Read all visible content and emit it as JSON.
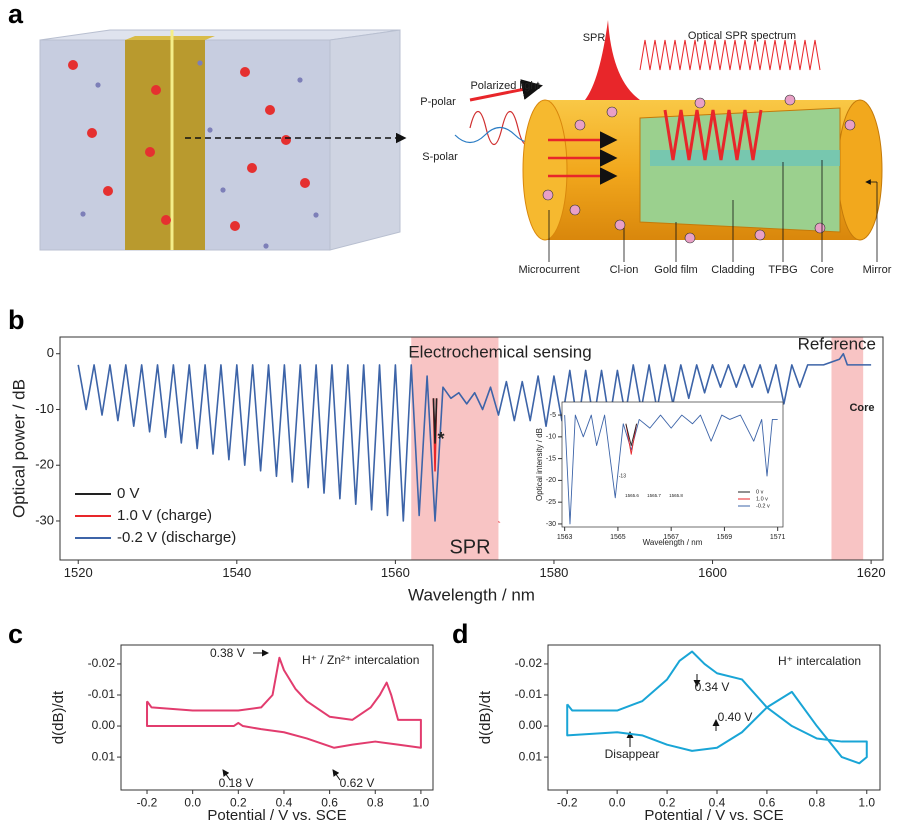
{
  "panel_labels": [
    "a",
    "b",
    "c",
    "d"
  ],
  "diagram": {
    "labels": [
      "Optical SPR spectrum",
      "SPR",
      "Polarized light",
      "P-polar",
      "S-polar",
      "Microcurrent",
      "Cl-ion",
      "Gold film",
      "Cladding",
      "TFBG",
      "Core",
      "Mirror"
    ]
  },
  "chart_data": [
    {
      "type": "line",
      "xlabel": "Wavelength / nm",
      "ylabel": "Optical power / dB",
      "xlim": [
        1517.7,
        1621.5
      ],
      "ylim": [
        -37,
        3
      ],
      "xticks": [
        1520,
        1540,
        1560,
        1580,
        1600,
        1620
      ],
      "yticks": [
        0,
        -10,
        -20,
        -30
      ],
      "legend": "lower left",
      "regions": [
        {
          "xlim": [
            1562,
            1573
          ],
          "label": "Electrochemical sensing"
        },
        {
          "xlim": [
            1615,
            1619
          ],
          "label": "Reference"
        }
      ],
      "region_color": "#f8c4c4",
      "annotations": [
        "SPR",
        "*",
        "Core"
      ],
      "annotation_color": "#e8262a",
      "series": [
        {
          "name": "0 V",
          "color": "#222222",
          "x": [
            1564.8,
            1565,
            1565.2
          ],
          "values": [
            -8,
            -16,
            -8
          ]
        },
        {
          "name": "1.0 V (charge)",
          "color": "#e8262a",
          "x": [
            1564.8,
            1565,
            1565.2
          ],
          "values": [
            -8,
            -21,
            -8
          ]
        },
        {
          "name": "-0.2 V (discharge)",
          "color": "#3d64a8",
          "x": [
            1520,
            1521,
            1522,
            1523,
            1524,
            1525,
            1526,
            1527,
            1528,
            1529,
            1530,
            1531,
            1532,
            1533,
            1534,
            1535,
            1536,
            1537,
            1538,
            1539,
            1540,
            1541,
            1542,
            1543,
            1544,
            1545,
            1546,
            1547,
            1548,
            1549,
            1550,
            1551,
            1552,
            1553,
            1554,
            1555,
            1556,
            1557,
            1558,
            1559,
            1560,
            1561,
            1562,
            1563,
            1564,
            1565,
            1566,
            1567,
            1568,
            1569,
            1570,
            1571,
            1572,
            1573,
            1574,
            1575,
            1576,
            1577,
            1578,
            1579,
            1580,
            1581,
            1582,
            1583,
            1584,
            1585,
            1586,
            1587,
            1588,
            1589,
            1590,
            1591,
            1592,
            1593,
            1594,
            1595,
            1596,
            1597,
            1598,
            1599,
            1600,
            1601,
            1602,
            1603,
            1604,
            1605,
            1606,
            1607,
            1608,
            1609,
            1610,
            1611,
            1612,
            1614,
            1616,
            1616.5,
            1617,
            1620
          ],
          "values": [
            -2,
            -10,
            -2,
            -11,
            -2,
            -12,
            -2,
            -13,
            -2,
            -14,
            -2,
            -15,
            -2,
            -16,
            -2,
            -17,
            -2,
            -18,
            -2,
            -19,
            -2,
            -20,
            -2,
            -21,
            -2,
            -22,
            -2,
            -23,
            -2,
            -24,
            -2,
            -25,
            -2,
            -26,
            -2,
            -27,
            -2,
            -28,
            -2,
            -29,
            -2,
            -30,
            -2,
            -29,
            -4,
            -30,
            -6,
            -8,
            -7,
            -9,
            -7,
            -10,
            -6,
            -11,
            -5,
            -12,
            -5,
            -12,
            -4,
            -13,
            -4,
            -12,
            -3,
            -13,
            -3,
            -12,
            -3,
            -12,
            -3,
            -11,
            -2,
            -10,
            -2,
            -10,
            -2,
            -9,
            -2,
            -8,
            -2,
            -7,
            -2,
            -6,
            -2,
            -6,
            -2,
            -6,
            -2,
            -7,
            -2,
            -9,
            -2,
            -6,
            -2,
            -2,
            -1,
            0,
            -2,
            -2
          ]
        }
      ]
    },
    {
      "type": "line",
      "xlabel": "Wavelength / nm",
      "ylabel": "Optical intensity / dB",
      "xlim": [
        1562.9,
        1571.2
      ],
      "ylim": [
        -30.7,
        -2
      ],
      "xticks": [
        1563,
        1565,
        1567,
        1569,
        1571
      ],
      "yticks": [
        -5,
        -10,
        -15,
        -20,
        -25,
        -30
      ],
      "legend": "lower right",
      "annotations": [
        "-13",
        "1565.6",
        "1565.7",
        "1565.8"
      ],
      "annotation_color": "#222222",
      "series": [
        {
          "name": "0 v",
          "color": "#222222",
          "x": [
            1565.3,
            1565.5,
            1565.7
          ],
          "values": [
            -7,
            -12,
            -7
          ]
        },
        {
          "name": "1.0 v",
          "color": "#e8262a",
          "x": [
            1565.3,
            1565.5,
            1565.7
          ],
          "values": [
            -7,
            -14,
            -7
          ]
        },
        {
          "name": "-0.2 v",
          "color": "#3d64a8",
          "x": [
            1563,
            1563.2,
            1563.4,
            1563.7,
            1564.0,
            1564.2,
            1564.5,
            1564.9,
            1565.2,
            1565.5,
            1565.8,
            1566.2,
            1566.6,
            1567.0,
            1567.4,
            1567.8,
            1568.1,
            1568.5,
            1568.9,
            1569.2,
            1569.6,
            1570.1,
            1570.4,
            1570.6,
            1570.8,
            1571
          ],
          "values": [
            -5,
            -30,
            -5,
            -10,
            -5,
            -12,
            -5,
            -24,
            -7,
            -13,
            -6,
            -8,
            -5,
            -8,
            -5,
            -7,
            -5,
            -11,
            -5,
            -6,
            -5,
            -11,
            -6,
            -19,
            -6,
            -6
          ]
        }
      ]
    },
    {
      "type": "line",
      "xlabel": "Potential / V vs. SCE",
      "ylabel": "d(dB)/dt",
      "xlim": [
        -0.314,
        1.053
      ],
      "ylim": [
        0.0206,
        -0.0261
      ],
      "xticks": [
        {
          "value": -0.2,
          "label": "-0.2"
        },
        {
          "value": 0,
          "label": "0.0"
        },
        0.2,
        0.4,
        0.6,
        0.8,
        {
          "value": 1,
          "label": "1.0"
        }
      ],
      "yticks": [
        {
          "value": -0.02,
          "label": "-0.02"
        },
        {
          "value": -0.01,
          "label": "-0.01"
        },
        {
          "value": 0,
          "label": "0.00"
        },
        0.01
      ],
      "annotations": [
        "0.38 V",
        "H⁺ / Zn²⁺ intercalation",
        "0.18 V",
        "0.62 V"
      ],
      "annotation_color": "#222222",
      "series": [
        {
          "color": "#e23c6e",
          "x": [
            -0.2,
            -0.18,
            0.0,
            0.2,
            0.3,
            0.35,
            0.38,
            0.4,
            0.45,
            0.5,
            0.6,
            0.7,
            0.78,
            0.82,
            0.85,
            0.87,
            0.9,
            0.95,
            1.0,
            1.0,
            0.9,
            0.8,
            0.7,
            0.62,
            0.5,
            0.4,
            0.3,
            0.22,
            0.2,
            0.18,
            0.0,
            -0.2,
            -0.2
          ],
          "values": [
            -0.008,
            -0.006,
            -0.005,
            -0.005,
            -0.006,
            -0.01,
            -0.022,
            -0.018,
            -0.012,
            -0.008,
            -0.003,
            -0.002,
            -0.006,
            -0.01,
            -0.014,
            -0.01,
            -0.002,
            -0.002,
            -0.002,
            0.007,
            0.006,
            0.005,
            0.006,
            0.007,
            0.004,
            0.002,
            0.001,
            0.0,
            -0.001,
            0.0,
            0.0,
            0.0,
            -0.008
          ]
        }
      ]
    },
    {
      "type": "line",
      "xlabel": "Potential / V vs. SCE",
      "ylabel": "d(dB)/dt",
      "xlim": [
        -0.277,
        1.053
      ],
      "ylim": [
        0.0206,
        -0.0261
      ],
      "xticks": [
        {
          "value": -0.2,
          "label": "-0.2"
        },
        {
          "value": 0,
          "label": "0.0"
        },
        0.2,
        0.4,
        0.6,
        0.8,
        {
          "value": 1,
          "label": "1.0"
        }
      ],
      "yticks": [
        {
          "value": -0.02,
          "label": "-0.02"
        },
        {
          "value": -0.01,
          "label": "-0.01"
        },
        {
          "value": 0,
          "label": "0.00"
        },
        0.01
      ],
      "annotations": [
        "0.34 V",
        "H⁺ intercalation",
        "0.40 V",
        "Disappear"
      ],
      "annotation_color": "#222222",
      "series": [
        {
          "color": "#19a5d6",
          "x": [
            -0.2,
            -0.18,
            0.0,
            0.1,
            0.2,
            0.25,
            0.3,
            0.35,
            0.4,
            0.5,
            0.6,
            0.7,
            0.8,
            0.9,
            1.0,
            1.0,
            0.97,
            0.9,
            0.8,
            0.7,
            0.6,
            0.5,
            0.4,
            0.3,
            0.2,
            0.1,
            0.0,
            -0.2,
            -0.2
          ],
          "values": [
            -0.007,
            -0.005,
            -0.005,
            -0.008,
            -0.015,
            -0.021,
            -0.024,
            -0.02,
            -0.017,
            -0.015,
            -0.006,
            0.0,
            0.004,
            0.005,
            0.005,
            0.01,
            0.012,
            0.01,
            0.0,
            -0.011,
            -0.006,
            0.002,
            0.007,
            0.008,
            0.006,
            0.003,
            0.002,
            0.003,
            -0.007
          ]
        }
      ]
    }
  ]
}
